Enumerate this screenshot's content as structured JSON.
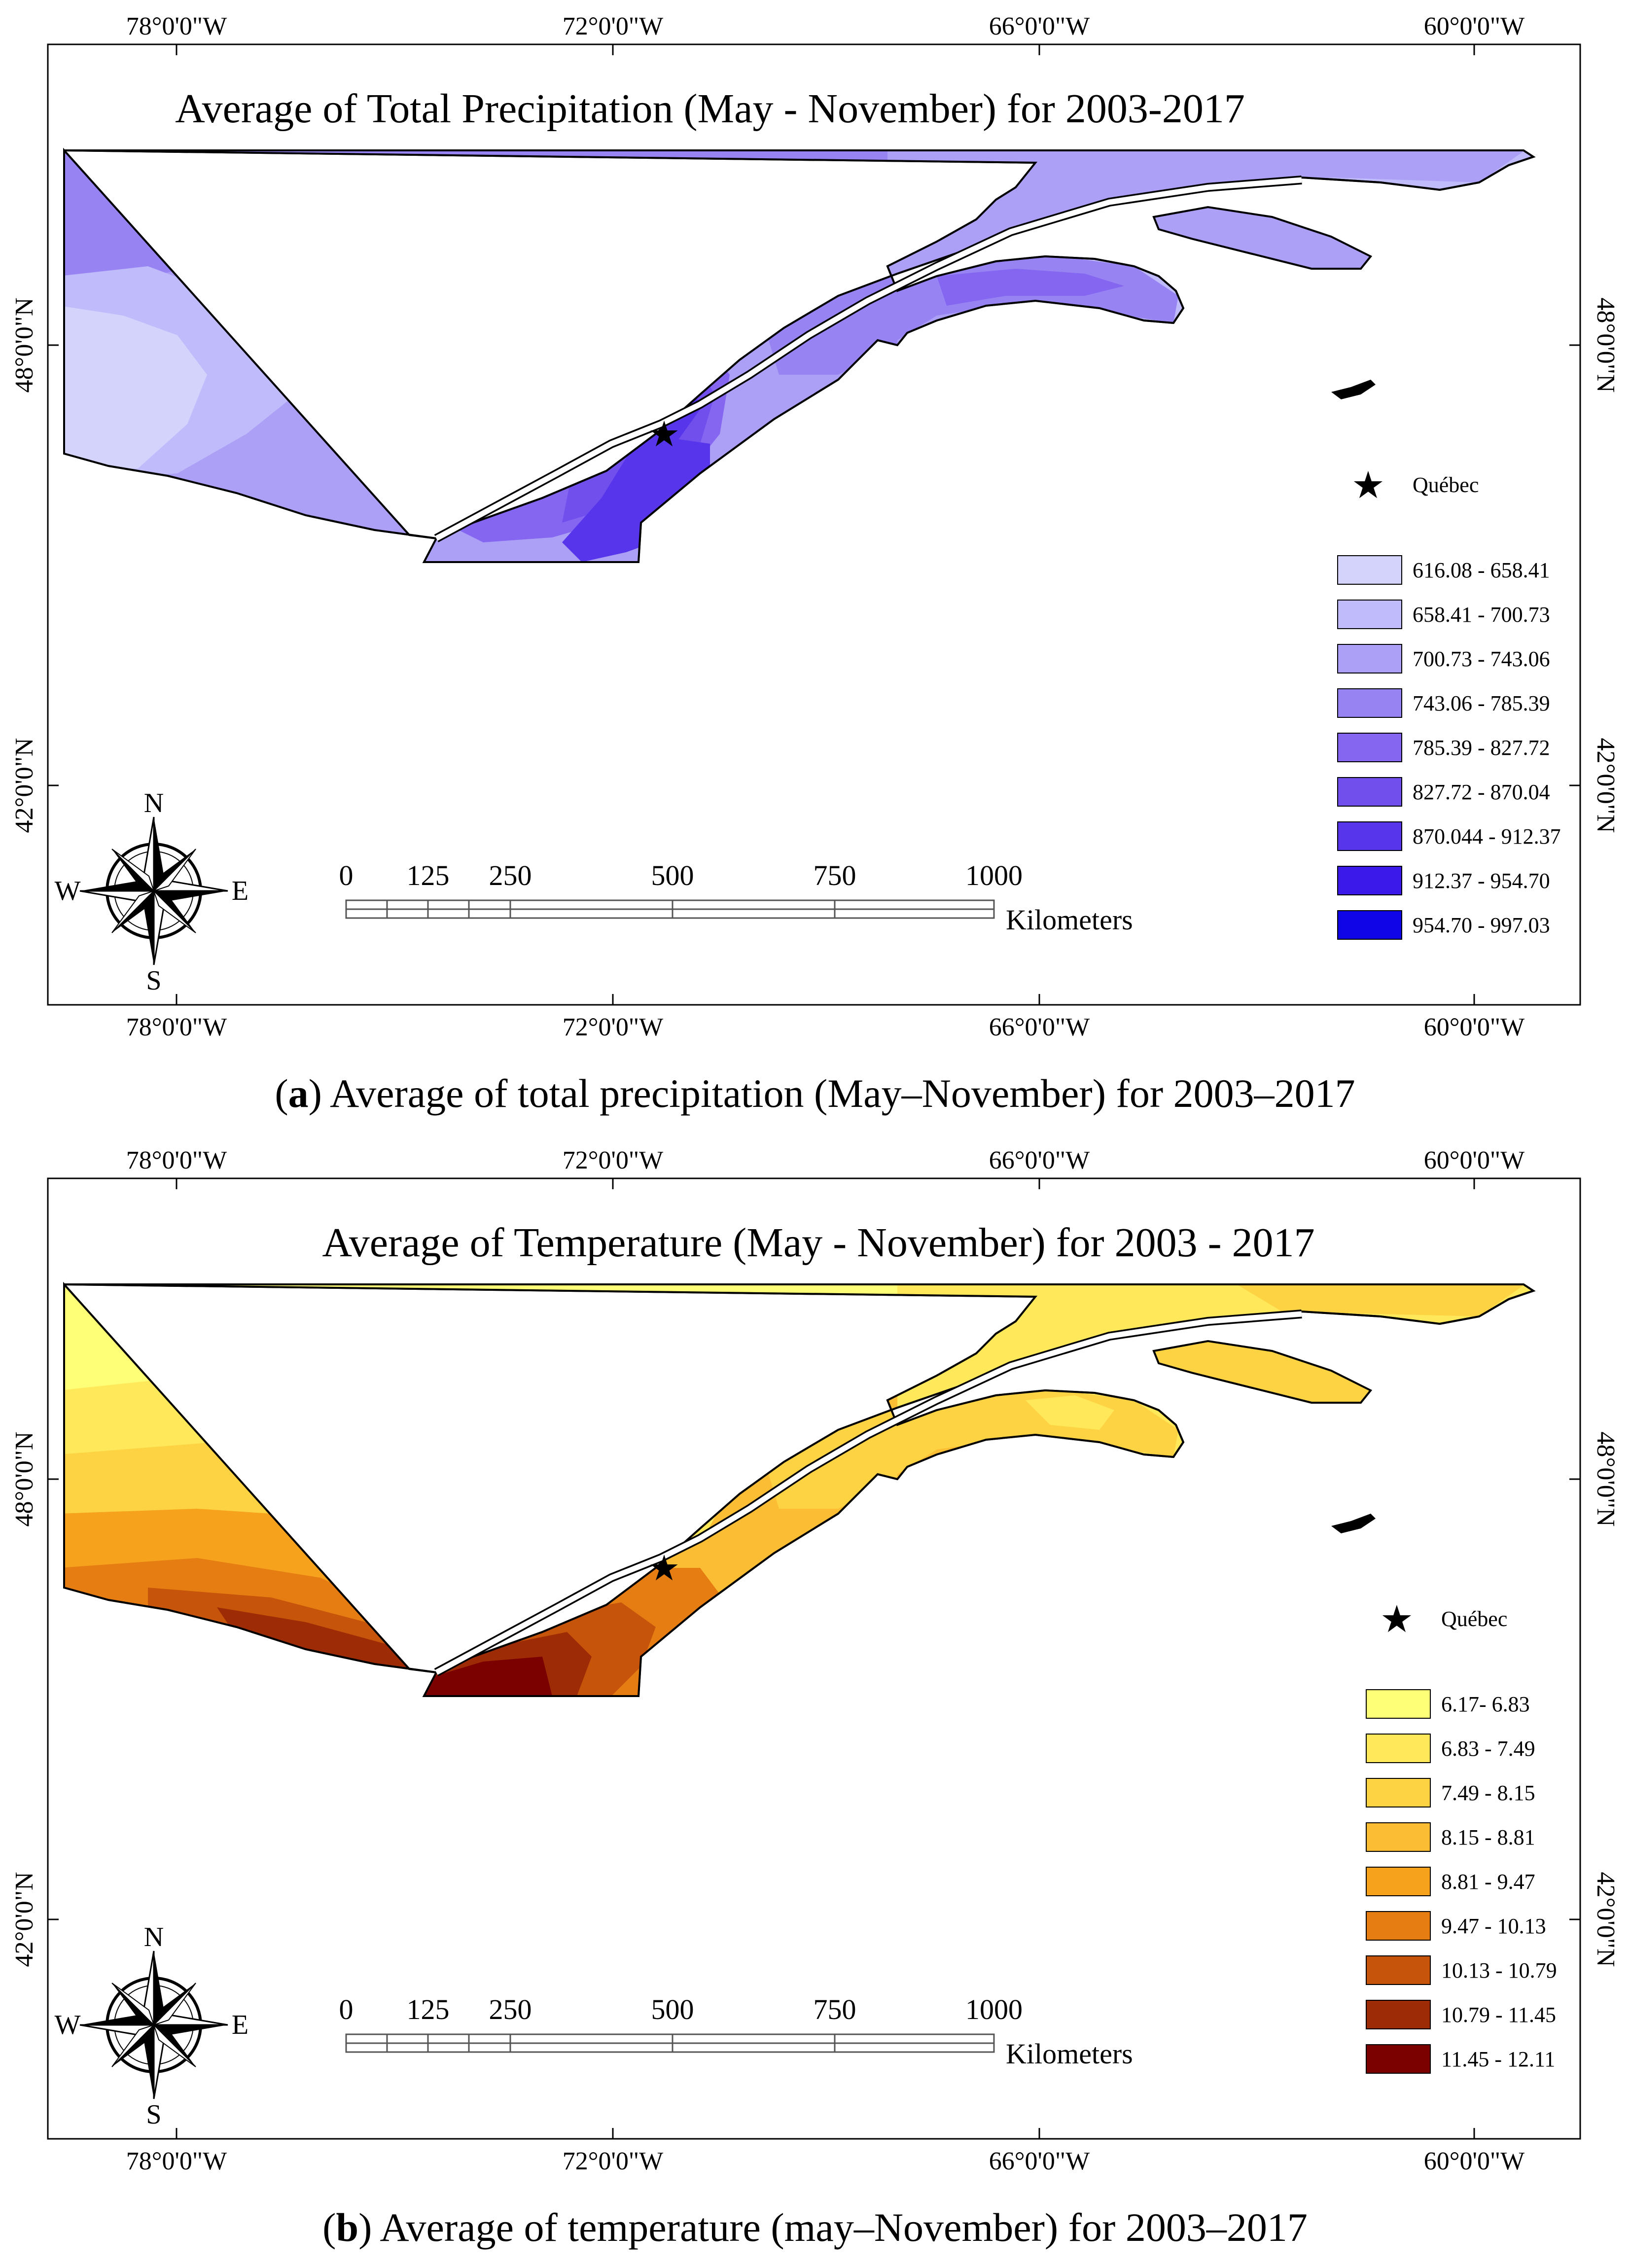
{
  "panels": [
    {
      "id": "a",
      "title": "Average of Total Precipitation (May - November) for 2003-2017",
      "caption_letter": "a",
      "caption_text": " Average of total precipitation (May–November) for 2003–2017",
      "top_labels": [
        "78°0'0\"W",
        "72°0'0\"W",
        "66°0'0\"W",
        "60°0'0\"W"
      ],
      "bottom_labels": [
        "78°0'0\"W",
        "72°0'0\"W",
        "66°0'0\"W",
        "60°0'0\"W"
      ],
      "left_labels": [
        "48°0'0\"N",
        "42°0'0\"N"
      ],
      "right_labels": [
        "48°0'0\"N",
        "42°0'0\"N"
      ],
      "marker_label": "Québec",
      "scale_ticks": [
        "0",
        "125",
        "250",
        "500",
        "750",
        "1000"
      ],
      "scale_unit": "Kilometers",
      "compass": {
        "n": "N",
        "s": "S",
        "e": "E",
        "w": "W"
      },
      "legend": [
        {
          "label": "616.08 - 658.41",
          "color": "#d3d3fc"
        },
        {
          "label": "658.41 - 700.73",
          "color": "#c0bcfb"
        },
        {
          "label": "700.73 - 743.06",
          "color": "#ac9ff6"
        },
        {
          "label": "743.06 - 785.39",
          "color": "#9883f3"
        },
        {
          "label": "785.39 - 827.72",
          "color": "#8466f0"
        },
        {
          "label": "827.72 - 870.04",
          "color": "#704fec"
        },
        {
          "label": "870.044 - 912.37",
          "color": "#5635ea"
        },
        {
          "label": "912.37 - 954.70",
          "color": "#3a19ea"
        },
        {
          "label": "954.70 - 997.03",
          "color": "#1005e6"
        }
      ]
    },
    {
      "id": "b",
      "title": "Average of Temperature (May - November) for 2003 - 2017",
      "caption_letter": "b",
      "caption_text": " Average of temperature (may–November) for 2003–2017",
      "top_labels": [
        "78°0'0\"W",
        "72°0'0\"W",
        "66°0'0\"W",
        "60°0'0\"W"
      ],
      "bottom_labels": [
        "78°0'0\"W",
        "72°0'0\"W",
        "66°0'0\"W",
        "60°0'0\"W"
      ],
      "left_labels": [
        "48°0'0\"N",
        "42°0'0\"N"
      ],
      "right_labels": [
        "48°0'0\"N",
        "42°0'0\"N"
      ],
      "marker_label": "Québec",
      "scale_ticks": [
        "0",
        "125",
        "250",
        "500",
        "750",
        "1000"
      ],
      "scale_unit": "Kilometers",
      "compass": {
        "n": "N",
        "s": "S",
        "e": "E",
        "w": "W"
      },
      "legend": [
        {
          "label": "6.17- 6.83",
          "color": "#ffff77"
        },
        {
          "label": "6.83 - 7.49",
          "color": "#ffe859"
        },
        {
          "label": "7.49 - 8.15",
          "color": "#fdd344"
        },
        {
          "label": "8.15 - 8.81",
          "color": "#fbbd33"
        },
        {
          "label": "8.81 - 9.47",
          "color": "#f6a21d"
        },
        {
          "label": "9.47 - 10.13",
          "color": "#e57d12"
        },
        {
          "label": "10.13 - 10.79",
          "color": "#c6540a"
        },
        {
          "label": "10.79 - 11.45",
          "color": "#9d2b05"
        },
        {
          "label": "11.45 - 12.11",
          "color": "#7b0000"
        }
      ]
    }
  ]
}
